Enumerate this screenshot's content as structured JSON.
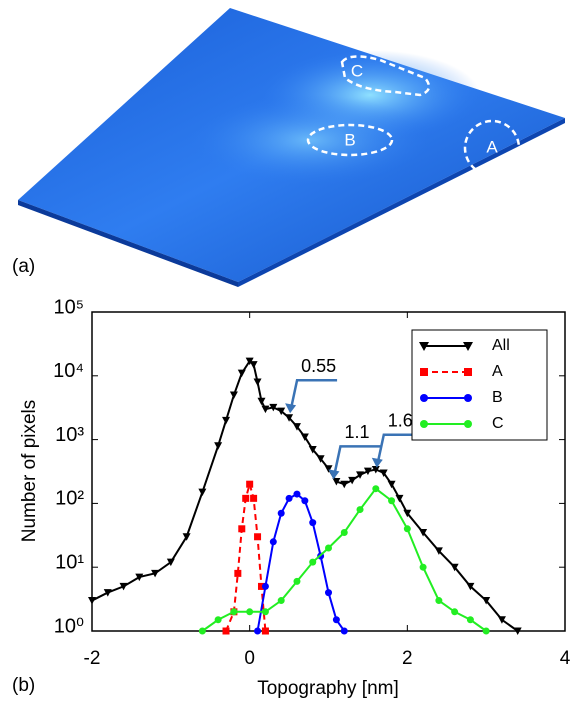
{
  "panel_a": {
    "label": "(a)",
    "region_labels": [
      "C",
      "B",
      "A"
    ]
  },
  "chart_data": {
    "type": "line",
    "panel_label": "(b)",
    "xlabel": "Topography [nm]",
    "ylabel": "Number of pixels",
    "log_y": true,
    "xlim": [
      -2,
      4
    ],
    "xticks": [
      -2,
      0,
      2,
      4
    ],
    "ylim": [
      1,
      100000
    ],
    "yticks": [
      {
        "value": 1,
        "label": "10⁰"
      },
      {
        "value": 10,
        "label": "10¹"
      },
      {
        "value": 100,
        "label": "10²"
      },
      {
        "value": 1000,
        "label": "10³"
      },
      {
        "value": 10000,
        "label": "10⁴"
      },
      {
        "value": 100000,
        "label": "10⁵"
      }
    ],
    "legend": "upper right",
    "grid": false,
    "series": [
      {
        "name": "All",
        "color": "#000000",
        "marker": "triangle-down",
        "dashed": false,
        "x": [
          -2,
          -1.8,
          -1.6,
          -1.4,
          -1.2,
          -1.0,
          -0.8,
          -0.6,
          -0.4,
          -0.3,
          -0.2,
          -0.1,
          0,
          0.05,
          0.1,
          0.15,
          0.2,
          0.3,
          0.4,
          0.5,
          0.6,
          0.7,
          0.8,
          0.9,
          1.0,
          1.1,
          1.2,
          1.3,
          1.4,
          1.5,
          1.6,
          1.7,
          1.8,
          1.9,
          2.0,
          2.2,
          2.4,
          2.6,
          2.8,
          3.0,
          3.2,
          3.4
        ],
        "values": [
          3,
          4,
          5,
          7,
          8,
          12,
          30,
          150,
          800,
          2000,
          5000,
          11000,
          17000,
          15000,
          8000,
          4000,
          3000,
          3200,
          2800,
          2200,
          1600,
          1100,
          700,
          500,
          350,
          220,
          200,
          230,
          280,
          320,
          340,
          300,
          200,
          120,
          70,
          35,
          18,
          10,
          5,
          3,
          1.5,
          1
        ]
      },
      {
        "name": "A",
        "color": "#ff0000",
        "marker": "square",
        "dashed": true,
        "x": [
          -0.3,
          -0.2,
          -0.15,
          -0.1,
          -0.05,
          0,
          0.05,
          0.1,
          0.15,
          0.2
        ],
        "values": [
          1,
          2,
          8,
          40,
          120,
          200,
          120,
          30,
          5,
          1
        ]
      },
      {
        "name": "B",
        "color": "#0000ff",
        "marker": "circle",
        "dashed": false,
        "x": [
          0.1,
          0.2,
          0.3,
          0.4,
          0.5,
          0.6,
          0.7,
          0.8,
          0.9,
          1.0,
          1.1,
          1.2
        ],
        "values": [
          1,
          5,
          25,
          70,
          120,
          140,
          110,
          50,
          15,
          4,
          1.5,
          1
        ]
      },
      {
        "name": "C",
        "color": "#22ee22",
        "marker": "circle",
        "dashed": false,
        "x": [
          -0.6,
          -0.4,
          -0.2,
          0,
          0.2,
          0.4,
          0.6,
          0.8,
          1.0,
          1.2,
          1.4,
          1.6,
          1.8,
          2.0,
          2.2,
          2.4,
          2.6,
          2.8,
          3.0
        ],
        "values": [
          1,
          1.5,
          2,
          2,
          2,
          3,
          6,
          12,
          20,
          35,
          80,
          170,
          110,
          40,
          10,
          3,
          2,
          1.5,
          1
        ]
      }
    ],
    "annotations": [
      {
        "text": "0.55",
        "x": 0.5,
        "y": 2500
      },
      {
        "text": "1.1",
        "x": 1.05,
        "y": 230
      },
      {
        "text": "1.65",
        "x": 1.6,
        "y": 350
      }
    ]
  }
}
